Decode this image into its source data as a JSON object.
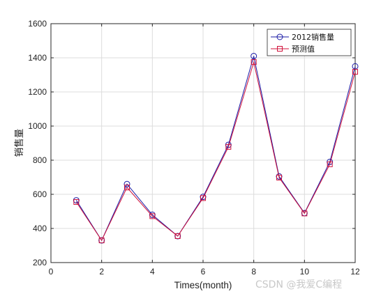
{
  "chart_data": {
    "type": "line",
    "title": "",
    "xlabel": "Times(month)",
    "ylabel": "销售量",
    "xlim": [
      0,
      12
    ],
    "ylim": [
      200,
      1600
    ],
    "xticks": [
      0,
      2,
      4,
      6,
      8,
      10,
      12
    ],
    "yticks": [
      200,
      400,
      600,
      800,
      1000,
      1200,
      1400,
      1600
    ],
    "grid": true,
    "legend_position": "top-right",
    "x": [
      1,
      2,
      3,
      4,
      5,
      6,
      7,
      8,
      9,
      10,
      11,
      12
    ],
    "series": [
      {
        "name": "2012销售量",
        "color": "#1a1aa6",
        "marker": "circle",
        "values": [
          565,
          330,
          660,
          480,
          355,
          585,
          890,
          1410,
          705,
          490,
          790,
          1350
        ]
      },
      {
        "name": "预测值",
        "color": "#d0103a",
        "marker": "square",
        "values": [
          555,
          330,
          640,
          472,
          355,
          578,
          878,
          1375,
          698,
          488,
          776,
          1318
        ]
      }
    ]
  },
  "watermark": "CSDN @我爱C编程"
}
